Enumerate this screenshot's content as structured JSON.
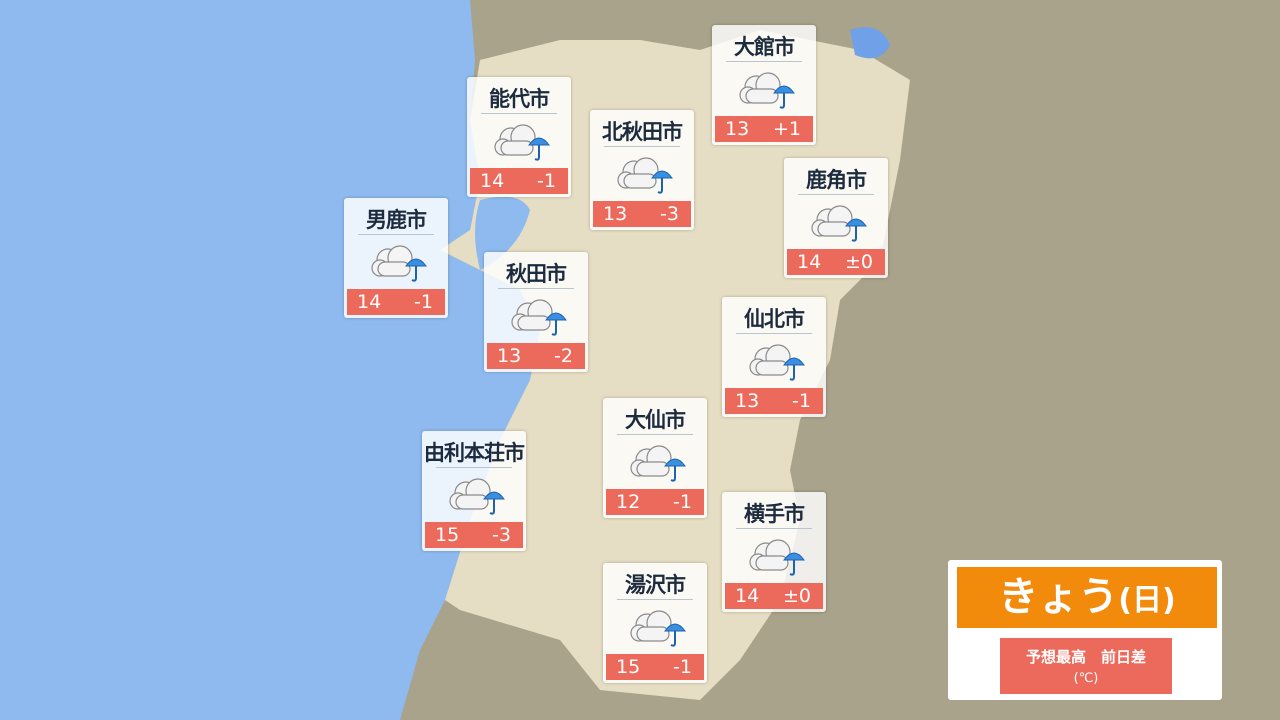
{
  "cities": [
    {
      "name": "大館市",
      "high": 13,
      "diff": "+1"
    },
    {
      "name": "能代市",
      "high": 14,
      "diff": "-1"
    },
    {
      "name": "北秋田市",
      "high": 13,
      "diff": "-3"
    },
    {
      "name": "鹿角市",
      "high": 14,
      "diff": "±0"
    },
    {
      "name": "男鹿市",
      "high": 14,
      "diff": "-1"
    },
    {
      "name": "秋田市",
      "high": 13,
      "diff": "-2"
    },
    {
      "name": "仙北市",
      "high": 13,
      "diff": "-1"
    },
    {
      "name": "大仙市",
      "high": 12,
      "diff": "-1"
    },
    {
      "name": "由利本荘市",
      "high": 15,
      "diff": "-3"
    },
    {
      "name": "横手市",
      "high": 14,
      "diff": "±0"
    },
    {
      "name": "湯沢市",
      "high": 15,
      "diff": "-1"
    }
  ],
  "legend": {
    "title": "きょう",
    "day": "(日)",
    "label": "予想最高　前日差",
    "unit": "(℃)"
  }
}
